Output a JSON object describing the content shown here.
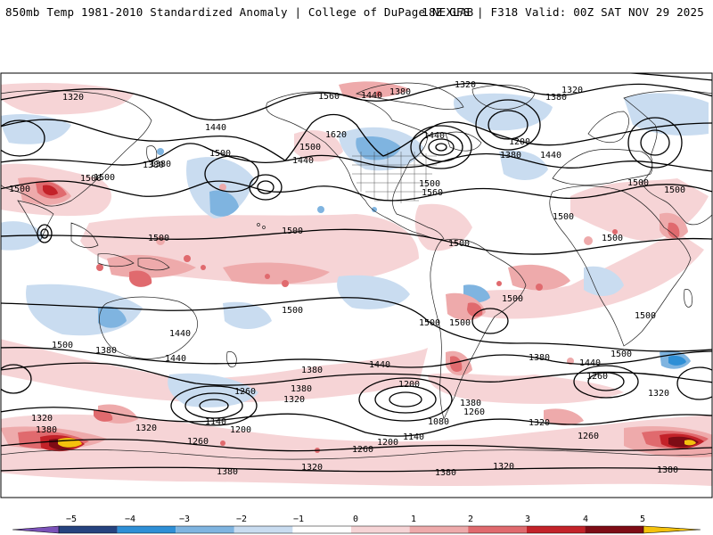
{
  "header": {
    "title": "850mb Temp 1981-2010 Standardized Anomaly | College of DuPage NEXLAB",
    "run_info": "18Z GFS | F318 Valid: 00Z SAT NOV 29 2025"
  },
  "map": {
    "anomaly_colors": {
      "neg5": "#7b52b9",
      "neg4": "#26437f",
      "neg3": "#2e8fd6",
      "neg2": "#7fb4e0",
      "neg1": "#c9dcf0",
      "zero": "#ffffff",
      "pos1": "#f6d4d6",
      "pos2": "#eeaaab",
      "pos3": "#e06a6e",
      "pos4": "#c32229",
      "pos5": "#7e0c15",
      "max": "#f4c20d"
    },
    "contour_labels": [
      "1320",
      "1320",
      "1320",
      "1320",
      "1440",
      "1380",
      "1380",
      "1560",
      "1620",
      "1500",
      "1440",
      "1500",
      "1560",
      "1200",
      "1380",
      "1440",
      "1380",
      "1440",
      "1500",
      "1500",
      "1500",
      "1500",
      "1500",
      "1500",
      "1500",
      "1500",
      "1500",
      "1500",
      "1500",
      "1500",
      "1500",
      "1500",
      "1500",
      "1500",
      "1380",
      "1440",
      "1440",
      "1380",
      "1440",
      "1260",
      "1380",
      "1320",
      "1200",
      "1140",
      "1200",
      "1260",
      "1080",
      "1260",
      "1140",
      "1200",
      "1260",
      "1320",
      "1320",
      "1380",
      "1320",
      "1380",
      "1380",
      "1320",
      "1260",
      "1320",
      "1260",
      "1380",
      "1320",
      "1380",
      "1380",
      "1440",
      "1380",
      "1440",
      "1500",
      "1500"
    ]
  },
  "colorbar": {
    "ticks": [
      "−5",
      "−4",
      "−3",
      "−2",
      "−1",
      "0",
      "1",
      "2",
      "3",
      "4",
      "5"
    ],
    "segments": [
      "#7b52b9",
      "#26437f",
      "#2e8fd6",
      "#7fb4e0",
      "#c9dcf0",
      "#ffffff",
      "#f6d4d6",
      "#eeaaab",
      "#e06a6e",
      "#c32229",
      "#7e0c15",
      "#f4c20d"
    ]
  }
}
